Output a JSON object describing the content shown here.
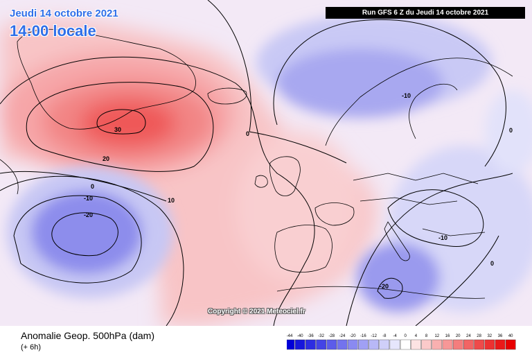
{
  "header": {
    "date": "Jeudi 14 octobre 2021",
    "time": "14:00 locale",
    "run": "Run GFS 6 Z du Jeudi 14 octobre 2021"
  },
  "copyright": "Copyright © 2021 Meteociel.fr",
  "footer": {
    "title": "Anomalie Geop. 500hPa (dam)",
    "subtitle": "(+ 6h)"
  },
  "legend": {
    "values": [
      "-44",
      "-40",
      "-36",
      "-32",
      "-28",
      "-24",
      "-20",
      "-16",
      "-12",
      "-8",
      "-4",
      "0",
      "4",
      "8",
      "12",
      "16",
      "20",
      "24",
      "28",
      "32",
      "36",
      "40"
    ],
    "colors": [
      "#0000d8",
      "#1717dc",
      "#2d2de2",
      "#4444e6",
      "#5c5cea",
      "#7373ee",
      "#8a8af1",
      "#a0a0f4",
      "#b8b8f7",
      "#cfcff9",
      "#e6e6fc",
      "#ffffff",
      "#fde3e3",
      "#fbcaca",
      "#f9b0b0",
      "#f79797",
      "#f47d7d",
      "#f26464",
      "#ef4a4a",
      "#ed3131",
      "#ea1818",
      "#e80000"
    ]
  },
  "contour_labels": [
    {
      "text": "30"
    },
    {
      "text": "20"
    },
    {
      "text": "10"
    },
    {
      "text": "0"
    },
    {
      "text": "0"
    },
    {
      "text": "-10"
    },
    {
      "text": "-20"
    },
    {
      "text": "-10"
    },
    {
      "text": "-10"
    },
    {
      "text": "-20"
    },
    {
      "text": "0"
    },
    {
      "text": "0"
    }
  ]
}
